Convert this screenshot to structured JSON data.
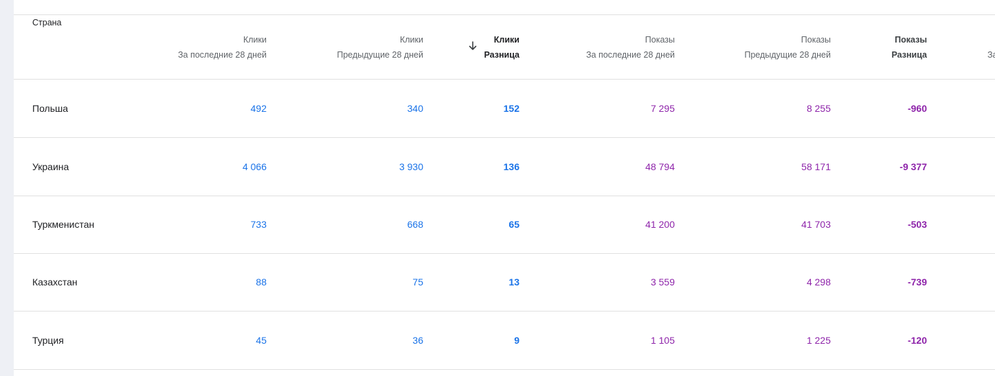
{
  "header": {
    "country": "Страна",
    "clicks_last": [
      "Клики",
      "За последние 28 дней"
    ],
    "clicks_prev": [
      "Клики",
      "Предыдущие 28 дней"
    ],
    "clicks_diff": [
      "Клики",
      "Разница"
    ],
    "impr_last": [
      "Показы",
      "За последние 28 дней"
    ],
    "impr_prev": [
      "Показы",
      "Предыдущие 28 дней"
    ],
    "impr_diff": [
      "Показы",
      "Разница"
    ],
    "cut_next": "За"
  },
  "rows": [
    {
      "country": "Польша",
      "clicks_last": "492",
      "clicks_prev": "340",
      "clicks_diff": "152",
      "impr_last": "7 295",
      "impr_prev": "8 255",
      "impr_diff": "-960"
    },
    {
      "country": "Украина",
      "clicks_last": "4 066",
      "clicks_prev": "3 930",
      "clicks_diff": "136",
      "impr_last": "48 794",
      "impr_prev": "58 171",
      "impr_diff": "-9 377"
    },
    {
      "country": "Туркменистан",
      "clicks_last": "733",
      "clicks_prev": "668",
      "clicks_diff": "65",
      "impr_last": "41 200",
      "impr_prev": "41 703",
      "impr_diff": "-503"
    },
    {
      "country": "Казахстан",
      "clicks_last": "88",
      "clicks_prev": "75",
      "clicks_diff": "13",
      "impr_last": "3 559",
      "impr_prev": "4 298",
      "impr_diff": "-739"
    },
    {
      "country": "Турция",
      "clicks_last": "45",
      "clicks_prev": "36",
      "clicks_diff": "9",
      "impr_last": "1 105",
      "impr_prev": "1 225",
      "impr_diff": "-120"
    }
  ],
  "colors": {
    "clicks": "#1a73e8",
    "impressions": "#8e24aa"
  },
  "sort": {
    "column": "clicks_diff",
    "direction": "descending",
    "icon": "arrow-down-icon"
  }
}
